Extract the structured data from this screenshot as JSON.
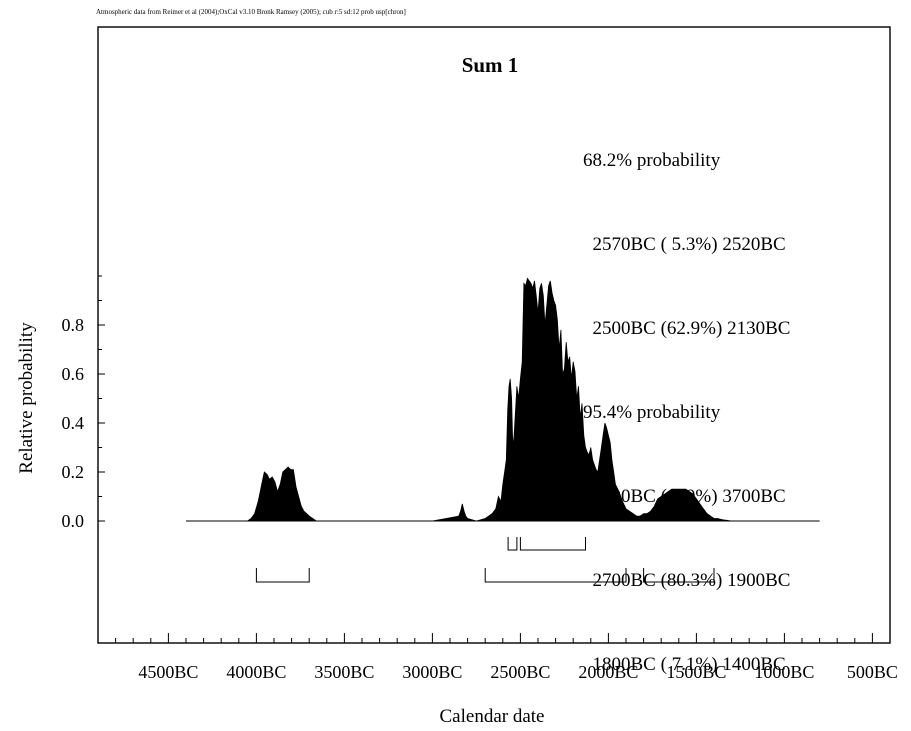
{
  "header_credit": "Atmospheric data from Reimer et al (2004);OxCal v3.10 Bronk Ramsey (2005); cub r:5 sd:12 prob usp[chron]",
  "summary": {
    "lines": [
      "68.2% probability",
      "  2570BC ( 5.3%) 2520BC",
      "  2500BC (62.9%) 2130BC",
      "95.4% probability",
      "  4000BC ( 8.0%) 3700BC",
      "  2700BC (80.3%) 1900BC",
      "  1800BC ( 7.1%) 1400BC"
    ]
  },
  "chart_data": {
    "type": "area",
    "title": "Sum 1",
    "xlabel": "Calendar date",
    "ylabel": "Relative probability",
    "x_unit": "year (negative = BC)",
    "xlim": [
      -4900,
      -400
    ],
    "ylim": [
      0,
      1.0
    ],
    "x_ticks": [
      -4500,
      -4000,
      -3500,
      -3000,
      -2500,
      -2000,
      -1500,
      -1000,
      -500
    ],
    "x_tick_labels": [
      "4500BC",
      "4000BC",
      "3500BC",
      "3000BC",
      "2500BC",
      "2000BC",
      "1500BC",
      "1000BC",
      "500BC"
    ],
    "y_ticks": [
      0.0,
      0.2,
      0.4,
      0.6,
      0.8
    ],
    "y_tick_labels": [
      "0.0",
      "0.2",
      "0.4",
      "0.6",
      "0.8"
    ],
    "grid": false,
    "fill_color": "#000000",
    "series": [
      {
        "x": [
          -4400,
          -4050,
          -4030,
          -4010,
          -3990,
          -3970,
          -3955,
          -3940,
          -3925,
          -3910,
          -3895,
          -3880,
          -3865,
          -3850,
          -3835,
          -3820,
          -3805,
          -3790,
          -3775,
          -3760,
          -3745,
          -3730,
          -3715,
          -3700,
          -3680,
          -3660,
          -3500,
          -3000,
          -2850,
          -2840,
          -2830,
          -2820,
          -2810,
          -2800,
          -2750,
          -2700,
          -2680,
          -2660,
          -2640,
          -2625,
          -2610,
          -2600,
          -2590,
          -2580,
          -2572,
          -2565,
          -2558,
          -2550,
          -2545,
          -2540,
          -2530,
          -2520,
          -2510,
          -2500,
          -2490,
          -2480,
          -2470,
          -2460,
          -2450,
          -2440,
          -2430,
          -2420,
          -2410,
          -2400,
          -2390,
          -2380,
          -2370,
          -2360,
          -2350,
          -2340,
          -2330,
          -2320,
          -2310,
          -2300,
          -2290,
          -2280,
          -2270,
          -2260,
          -2250,
          -2240,
          -2230,
          -2220,
          -2210,
          -2200,
          -2190,
          -2180,
          -2170,
          -2160,
          -2150,
          -2140,
          -2130,
          -2120,
          -2110,
          -2100,
          -2090,
          -2080,
          -2070,
          -2060,
          -2050,
          -2040,
          -2030,
          -2020,
          -2010,
          -2000,
          -1990,
          -1980,
          -1970,
          -1960,
          -1940,
          -1920,
          -1900,
          -1880,
          -1860,
          -1840,
          -1820,
          -1800,
          -1780,
          -1760,
          -1740,
          -1720,
          -1700,
          -1680,
          -1660,
          -1640,
          -1620,
          -1600,
          -1580,
          -1560,
          -1540,
          -1520,
          -1500,
          -1480,
          -1460,
          -1440,
          -1420,
          -1400,
          -1380,
          -1350,
          -1300,
          -800
        ],
        "y": [
          0,
          0,
          0.01,
          0.03,
          0.08,
          0.15,
          0.2,
          0.19,
          0.17,
          0.18,
          0.16,
          0.12,
          0.15,
          0.2,
          0.21,
          0.22,
          0.21,
          0.21,
          0.14,
          0.1,
          0.06,
          0.04,
          0.03,
          0.02,
          0.01,
          0,
          0,
          0,
          0.02,
          0.04,
          0.07,
          0.04,
          0.02,
          0.01,
          0,
          0.01,
          0.02,
          0.03,
          0.05,
          0.1,
          0.08,
          0.15,
          0.2,
          0.25,
          0.45,
          0.55,
          0.58,
          0.5,
          0.35,
          0.3,
          0.42,
          0.55,
          0.5,
          0.58,
          0.65,
          0.97,
          0.96,
          0.99,
          0.98,
          0.97,
          0.95,
          0.98,
          0.92,
          0.85,
          0.95,
          0.97,
          0.92,
          0.8,
          0.88,
          0.96,
          0.98,
          0.93,
          0.9,
          0.88,
          0.82,
          0.7,
          0.78,
          0.6,
          0.62,
          0.73,
          0.65,
          0.67,
          0.58,
          0.65,
          0.61,
          0.5,
          0.55,
          0.42,
          0.48,
          0.35,
          0.3,
          0.28,
          0.27,
          0.3,
          0.25,
          0.23,
          0.21,
          0.2,
          0.25,
          0.3,
          0.35,
          0.4,
          0.38,
          0.35,
          0.32,
          0.25,
          0.2,
          0.15,
          0.12,
          0.08,
          0.05,
          0.04,
          0.03,
          0.02,
          0.02,
          0.03,
          0.03,
          0.04,
          0.06,
          0.09,
          0.1,
          0.11,
          0.12,
          0.13,
          0.13,
          0.13,
          0.13,
          0.13,
          0.12,
          0.11,
          0.09,
          0.07,
          0.05,
          0.03,
          0.02,
          0.01,
          0.01,
          0.005,
          0,
          0
        ]
      }
    ],
    "intervals_68": [
      [
        -2570,
        -2520
      ],
      [
        -2500,
        -2130
      ]
    ],
    "intervals_95": [
      [
        -4000,
        -3700
      ],
      [
        -2700,
        -1900
      ],
      [
        -1800,
        -1400
      ]
    ]
  }
}
